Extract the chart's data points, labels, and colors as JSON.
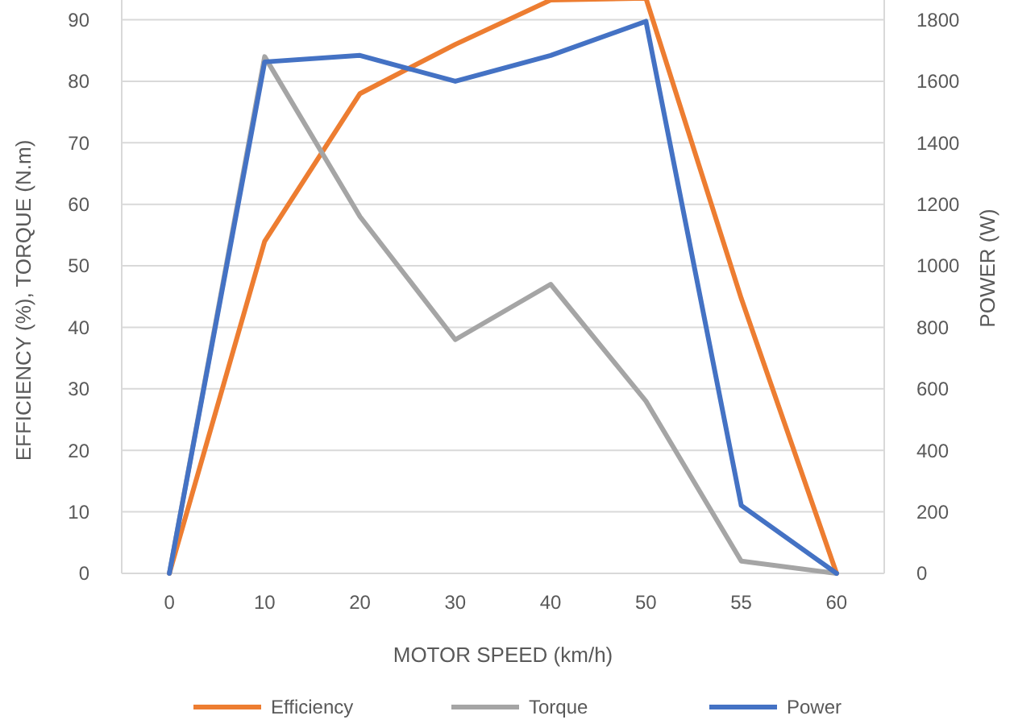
{
  "chart_data": {
    "type": "line",
    "xlabel": "MOTOR SPEED (km/h)",
    "ylabel": "EFFICIENCY (%), TORQUE (N.m)",
    "y2label": "POWER (W)",
    "categories": [
      "0",
      "10",
      "20",
      "30",
      "40",
      "50",
      "55",
      "60"
    ],
    "series": [
      {
        "name": "Efficiency",
        "color": "#ed7d31",
        "values": [
          0,
          54,
          78,
          86,
          93.2,
          93.5,
          44.7,
          0
        ]
      },
      {
        "name": "Torque",
        "color": "#a5a5a5",
        "values": [
          0,
          84,
          58,
          38,
          47,
          28,
          2,
          0
        ]
      },
      {
        "name": "Power",
        "color": "#4472c4",
        "axis": "y2",
        "values": [
          0,
          1663,
          1684,
          1600,
          1684,
          1795,
          221,
          0
        ]
      }
    ],
    "ylim": [
      0,
      94
    ],
    "yticks": [
      0,
      10,
      20,
      30,
      40,
      50,
      60,
      70,
      80,
      90
    ],
    "y2lim": [
      0,
      1880
    ],
    "y2ticks": [
      0,
      200,
      400,
      600,
      800,
      1000,
      1200,
      1400,
      1600,
      1800
    ],
    "grid": "y",
    "legend": "bottom",
    "marker": "none",
    "line_style": "solid"
  }
}
